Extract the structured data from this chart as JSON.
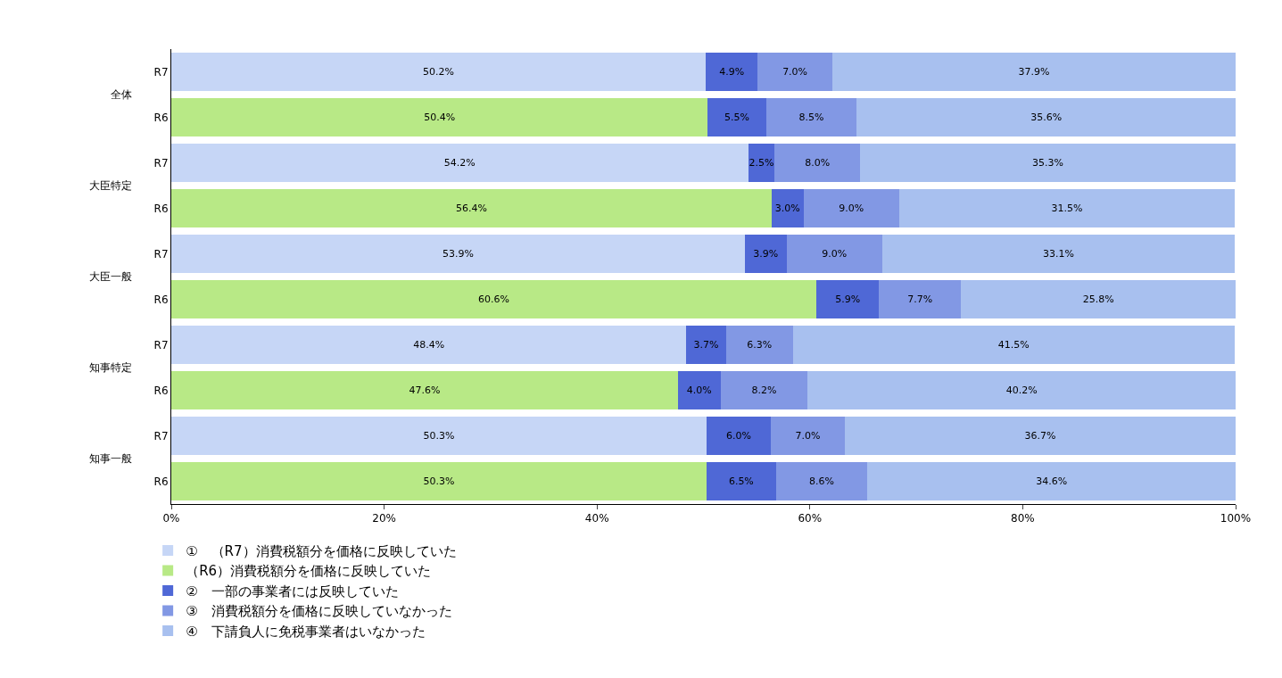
{
  "chart_data": {
    "type": "bar",
    "orientation": "horizontal",
    "stacked": true,
    "categories": [
      "R7",
      "R6",
      "R7",
      "R6",
      "R7",
      "R6",
      "R7",
      "R6",
      "R7",
      "R6"
    ],
    "annotations": [
      "全体",
      "大臣特定",
      "大臣一般",
      "知事特定",
      "知事一般"
    ],
    "series": [
      {
        "name": "①　（R7）消費税額分を価格に反映していた",
        "color": "#c6d6f6",
        "values": [
          50.2,
          null,
          54.2,
          null,
          53.9,
          null,
          48.4,
          null,
          50.3,
          null
        ],
        "value_labels": [
          "50.2%",
          null,
          "54.2%",
          null,
          "53.9%",
          null,
          "48.4%",
          null,
          "50.3%",
          null
        ]
      },
      {
        "name": "（R6）消費税額分を価格に反映していた",
        "color": "#b8e986",
        "values": [
          null,
          50.4,
          null,
          56.4,
          null,
          60.6,
          null,
          47.6,
          null,
          50.3
        ],
        "value_labels": [
          null,
          "50.4%",
          null,
          "56.4%",
          null,
          "60.6%",
          null,
          "47.6%",
          null,
          "50.3%"
        ]
      },
      {
        "name": "②　一部の事業者には反映していた",
        "color": "#4f68d6",
        "values": [
          4.9,
          5.5,
          2.5,
          3.0,
          3.9,
          5.9,
          3.7,
          4.0,
          6.0,
          6.5
        ],
        "value_labels": [
          "4.9%",
          "5.5%",
          "2.5%",
          "3.0%",
          "3.9%",
          "5.9%",
          "3.7%",
          "4.0%",
          "6.0%",
          "6.5%"
        ]
      },
      {
        "name": "③　消費税額分を価格に反映していなかった",
        "color": "#8298e4",
        "values": [
          7.0,
          8.5,
          8.0,
          9.0,
          9.0,
          7.7,
          6.3,
          8.2,
          7.0,
          8.6
        ],
        "value_labels": [
          "7.0%",
          "8.5%",
          "8.0%",
          "9.0%",
          "9.0%",
          "7.7%",
          "6.3%",
          "8.2%",
          "7.0%",
          "8.6%"
        ]
      },
      {
        "name": "④　下請負人に免税事業者はいなかった",
        "color": "#a8c0ef",
        "values": [
          37.9,
          35.6,
          35.3,
          31.5,
          33.1,
          25.8,
          41.5,
          40.2,
          36.7,
          34.6
        ],
        "value_labels": [
          "37.9%",
          "35.6%",
          "35.3%",
          "31.5%",
          "33.1%",
          "25.8%",
          "41.5%",
          "40.2%",
          "36.7%",
          "34.6%"
        ]
      }
    ],
    "xlim": [
      0,
      100
    ],
    "xticks": [
      {
        "value": 0,
        "label": "0%"
      },
      {
        "value": 20,
        "label": "20%"
      },
      {
        "value": 40,
        "label": "40%"
      },
      {
        "value": 60,
        "label": "60%"
      },
      {
        "value": 80,
        "label": "80%"
      },
      {
        "value": 100,
        "label": "100%"
      }
    ],
    "legend": "bottom left"
  }
}
